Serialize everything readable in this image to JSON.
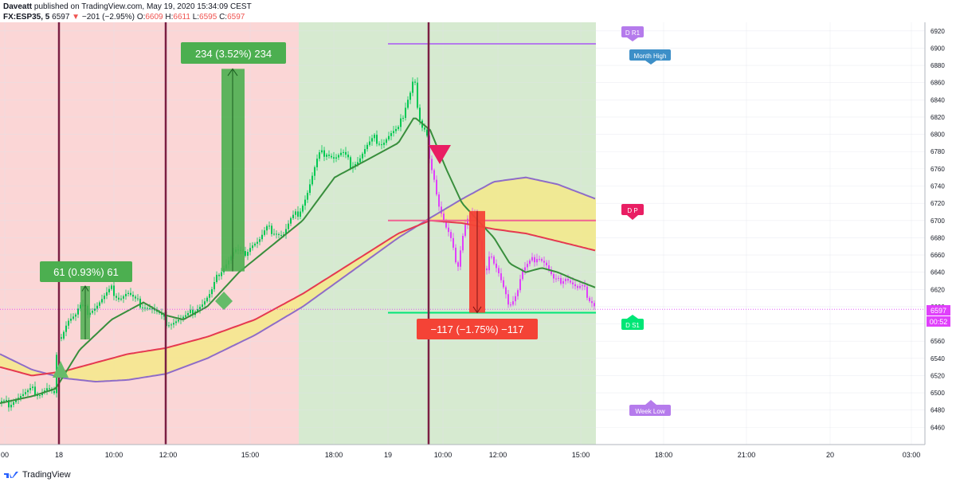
{
  "header": {
    "author": "Daveatt",
    "published": "published on TradingView.com, May 19, 2020 15:34:09 CEST",
    "symbol": "FX:ESP35, 5",
    "last": "6597",
    "change": "−201 (−2.95%)",
    "ohlc_o_label": "O:",
    "ohlc_o": "6609",
    "ohlc_h_label": "H:",
    "ohlc_h": "6611",
    "ohlc_l_label": "L:",
    "ohlc_l": "6595",
    "ohlc_c_label": "C:",
    "ohlc_c": "6597"
  },
  "colors": {
    "bull_session": "#d6ead0",
    "bear_session": "#fbd6d6",
    "candle_green": "#00c853",
    "candle_magenta": "#e040fb",
    "ma_green": "#388e3c",
    "ma_red": "#e53950",
    "ma_purple": "#8e6cc8",
    "cloud": "#f5e98a",
    "separator": "#7b1f43"
  },
  "price_axis": {
    "ticks": [
      "6920",
      "6900",
      "6880",
      "6860",
      "6840",
      "6820",
      "6800",
      "6780",
      "6760",
      "6740",
      "6720",
      "6700",
      "6680",
      "6660",
      "6640",
      "6620",
      "6600",
      "6580",
      "6560",
      "6540",
      "6520",
      "6500",
      "6480",
      "6460"
    ],
    "current_price": "6597",
    "countdown": "00:52"
  },
  "time_axis": {
    "ticks": [
      "00",
      "18",
      "10:00",
      "12:00",
      "15:00",
      "18:00",
      "19",
      "10:00",
      "12:00",
      "15:00",
      "18:00",
      "21:00",
      "20",
      "03:00"
    ]
  },
  "measures": {
    "up_small": "61 (0.93%) 61",
    "up_big": "234 (3.52%) 234",
    "down": "−117 (−1.75%) −117"
  },
  "levels": {
    "r1": "D R1",
    "month_high": "Month High",
    "pivot": "D P",
    "s1": "D S1",
    "week_low": "Week Low"
  },
  "footer": {
    "brand": "TradingView"
  },
  "chart_data": {
    "type": "candlestick",
    "ylim": [
      6440,
      6930
    ],
    "close_path": [
      [
        0,
        6488
      ],
      [
        10,
        6487
      ],
      [
        20,
        6494
      ],
      [
        30,
        6498
      ],
      [
        40,
        6503
      ],
      [
        50,
        6500
      ],
      [
        60,
        6506
      ],
      [
        68,
        6497
      ],
      [
        72,
        6555
      ],
      [
        78,
        6570
      ],
      [
        85,
        6585
      ],
      [
        95,
        6590
      ],
      [
        100,
        6600
      ],
      [
        110,
        6595
      ],
      [
        120,
        6600
      ],
      [
        130,
        6610
      ],
      [
        140,
        6620
      ],
      [
        150,
        6610
      ],
      [
        160,
        6616
      ],
      [
        170,
        6606
      ],
      [
        180,
        6602
      ],
      [
        190,
        6598
      ],
      [
        200,
        6590
      ],
      [
        208,
        6582
      ],
      [
        215,
        6582
      ],
      [
        225,
        6585
      ],
      [
        235,
        6588
      ],
      [
        245,
        6598
      ],
      [
        255,
        6604
      ],
      [
        265,
        6615
      ],
      [
        275,
        6640
      ],
      [
        285,
        6652
      ],
      [
        295,
        6665
      ],
      [
        305,
        6660
      ],
      [
        315,
        6672
      ],
      [
        325,
        6676
      ],
      [
        335,
        6690
      ],
      [
        345,
        6688
      ],
      [
        355,
        6682
      ],
      [
        365,
        6700
      ],
      [
        375,
        6710
      ],
      [
        385,
        6730
      ],
      [
        395,
        6760
      ],
      [
        400,
        6775
      ],
      [
        410,
        6780
      ],
      [
        420,
        6772
      ],
      [
        430,
        6778
      ],
      [
        440,
        6765
      ],
      [
        450,
        6770
      ],
      [
        460,
        6785
      ],
      [
        470,
        6795
      ],
      [
        480,
        6790
      ],
      [
        490,
        6800
      ],
      [
        500,
        6805
      ],
      [
        505,
        6820
      ],
      [
        510,
        6838
      ],
      [
        515,
        6850
      ],
      [
        520,
        6870
      ],
      [
        525,
        6820
      ],
      [
        530,
        6805
      ],
      [
        535,
        6800
      ],
      [
        540,
        6770
      ],
      [
        545,
        6750
      ],
      [
        550,
        6720
      ],
      [
        555,
        6705
      ],
      [
        560,
        6690
      ],
      [
        565,
        6680
      ],
      [
        570,
        6660
      ],
      [
        575,
        6650
      ],
      [
        580,
        6680
      ],
      [
        585,
        6700
      ],
      [
        590,
        6705
      ],
      [
        595,
        6710
      ],
      [
        600,
        6680
      ],
      [
        605,
        6660
      ],
      [
        610,
        6640
      ],
      [
        615,
        6665
      ],
      [
        620,
        6650
      ],
      [
        625,
        6640
      ],
      [
        630,
        6625
      ],
      [
        635,
        6610
      ],
      [
        640,
        6605
      ],
      [
        645,
        6610
      ],
      [
        650,
        6620
      ],
      [
        655,
        6640
      ],
      [
        660,
        6645
      ],
      [
        665,
        6650
      ],
      [
        670,
        6655
      ],
      [
        675,
        6660
      ],
      [
        680,
        6655
      ],
      [
        685,
        6650
      ],
      [
        690,
        6640
      ],
      [
        695,
        6630
      ],
      [
        700,
        6628
      ],
      [
        705,
        6632
      ],
      [
        710,
        6635
      ],
      [
        715,
        6630
      ],
      [
        720,
        6625
      ],
      [
        725,
        6620
      ],
      [
        730,
        6622
      ],
      [
        735,
        6618
      ],
      [
        740,
        6610
      ],
      [
        745,
        6605
      ],
      [
        748,
        6597
      ]
    ],
    "green_ma": [
      [
        0,
        6488
      ],
      [
        40,
        6496
      ],
      [
        70,
        6505
      ],
      [
        100,
        6550
      ],
      [
        140,
        6585
      ],
      [
        180,
        6605
      ],
      [
        208,
        6590
      ],
      [
        230,
        6585
      ],
      [
        260,
        6600
      ],
      [
        300,
        6640
      ],
      [
        340,
        6670
      ],
      [
        380,
        6700
      ],
      [
        420,
        6750
      ],
      [
        460,
        6770
      ],
      [
        500,
        6790
      ],
      [
        520,
        6820
      ],
      [
        540,
        6805
      ],
      [
        560,
        6760
      ],
      [
        580,
        6720
      ],
      [
        600,
        6700
      ],
      [
        620,
        6680
      ],
      [
        640,
        6650
      ],
      [
        660,
        6640
      ],
      [
        680,
        6645
      ],
      [
        700,
        6640
      ],
      [
        720,
        6632
      ],
      [
        748,
        6622
      ]
    ],
    "red_ma": [
      [
        0,
        6530
      ],
      [
        40,
        6520
      ],
      [
        80,
        6525
      ],
      [
        120,
        6535
      ],
      [
        160,
        6545
      ],
      [
        208,
        6552
      ],
      [
        260,
        6565
      ],
      [
        320,
        6585
      ],
      [
        380,
        6615
      ],
      [
        440,
        6650
      ],
      [
        500,
        6685
      ],
      [
        540,
        6700
      ],
      [
        580,
        6697
      ],
      [
        620,
        6690
      ],
      [
        660,
        6685
      ],
      [
        700,
        6676
      ],
      [
        748,
        6665
      ]
    ],
    "purple_ma": [
      [
        0,
        6545
      ],
      [
        40,
        6527
      ],
      [
        80,
        6517
      ],
      [
        120,
        6513
      ],
      [
        160,
        6515
      ],
      [
        208,
        6522
      ],
      [
        260,
        6540
      ],
      [
        320,
        6567
      ],
      [
        380,
        6600
      ],
      [
        440,
        6640
      ],
      [
        500,
        6680
      ],
      [
        540,
        6703
      ],
      [
        580,
        6725
      ],
      [
        620,
        6745
      ],
      [
        660,
        6750
      ],
      [
        700,
        6742
      ],
      [
        748,
        6725
      ]
    ],
    "levels": {
      "r1": 6905,
      "pivot": 6700,
      "s1": 6593,
      "current": 6597
    },
    "session_separators": [
      74,
      208,
      538
    ],
    "sessions": [
      {
        "from": 0,
        "to": 375,
        "kind": "bear"
      },
      {
        "from": 375,
        "to": 748,
        "kind": "bull"
      }
    ]
  }
}
